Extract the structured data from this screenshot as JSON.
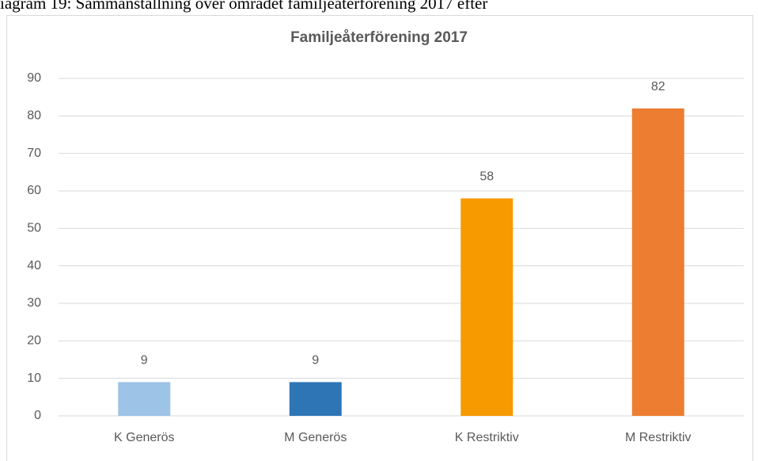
{
  "caption": "iagram 19: Sammanställning över området familjeåterförening 2017 efter",
  "chart_data": {
    "type": "bar",
    "title": "Familjeåterförening 2017",
    "categories": [
      "K Generös",
      "M Generös",
      "K Restriktiv",
      "M Restriktiv"
    ],
    "values": [
      9,
      9,
      58,
      82
    ],
    "colors": [
      "#9dc3e6",
      "#2e75b6",
      "#f79a00",
      "#ed7d31"
    ],
    "ylim": [
      0,
      90
    ],
    "yticks": [
      0,
      10,
      20,
      30,
      40,
      50,
      60,
      70,
      80,
      90
    ],
    "grid": true
  }
}
